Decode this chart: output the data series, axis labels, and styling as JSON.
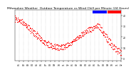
{
  "title": "Milwaukee Weather  Outdoor Temperature vs Wind Chill per Minute (24 Hours)",
  "title_fontsize": 3.2,
  "background_color": "#ffffff",
  "legend_blue_color": "#0000ff",
  "legend_red_color": "#ff0000",
  "y_ticks": [
    0,
    10,
    20,
    30,
    40
  ],
  "ylim": [
    -2,
    45
  ],
  "xlim": [
    0,
    1440
  ],
  "tick_fontsize": 2.2,
  "dot_color": "#ff0000",
  "dot_size": 0.8,
  "vline_color": "#aaaaaa",
  "vline_style": "dotted",
  "vline_positions": [
    60,
    120,
    180,
    240,
    300,
    360,
    420,
    480,
    540,
    600,
    660,
    720,
    780,
    840,
    900,
    960,
    1020,
    1080,
    1140,
    1200,
    1260,
    1320,
    1380
  ],
  "outdoor_points": [
    38,
    36,
    33,
    30,
    26,
    22,
    18,
    15,
    13,
    12,
    12,
    13,
    15,
    18,
    22,
    25,
    28,
    30,
    32,
    26,
    20,
    14,
    10,
    8
  ],
  "windchill_points": [
    36,
    34,
    31,
    27,
    23,
    19,
    15,
    12,
    10,
    9,
    9,
    10,
    13,
    16,
    20,
    22,
    25,
    27,
    29,
    23,
    16,
    10,
    6,
    4
  ],
  "noise_seed": 7,
  "noise_scale": 0.8,
  "subsample": 8,
  "x_tick_positions": [
    60,
    120,
    180,
    240,
    300,
    360,
    420,
    480,
    540,
    600,
    660,
    720,
    780,
    840,
    900,
    960,
    1020,
    1080,
    1140,
    1200,
    1260,
    1320,
    1380,
    1440
  ],
  "x_tick_labels": [
    "01",
    "02",
    "03",
    "04",
    "05",
    "06",
    "07",
    "08",
    "09",
    "10",
    "11",
    "12",
    "01",
    "02",
    "03",
    "04",
    "05",
    "06",
    "07",
    "08",
    "09",
    "10",
    "11",
    "12"
  ]
}
